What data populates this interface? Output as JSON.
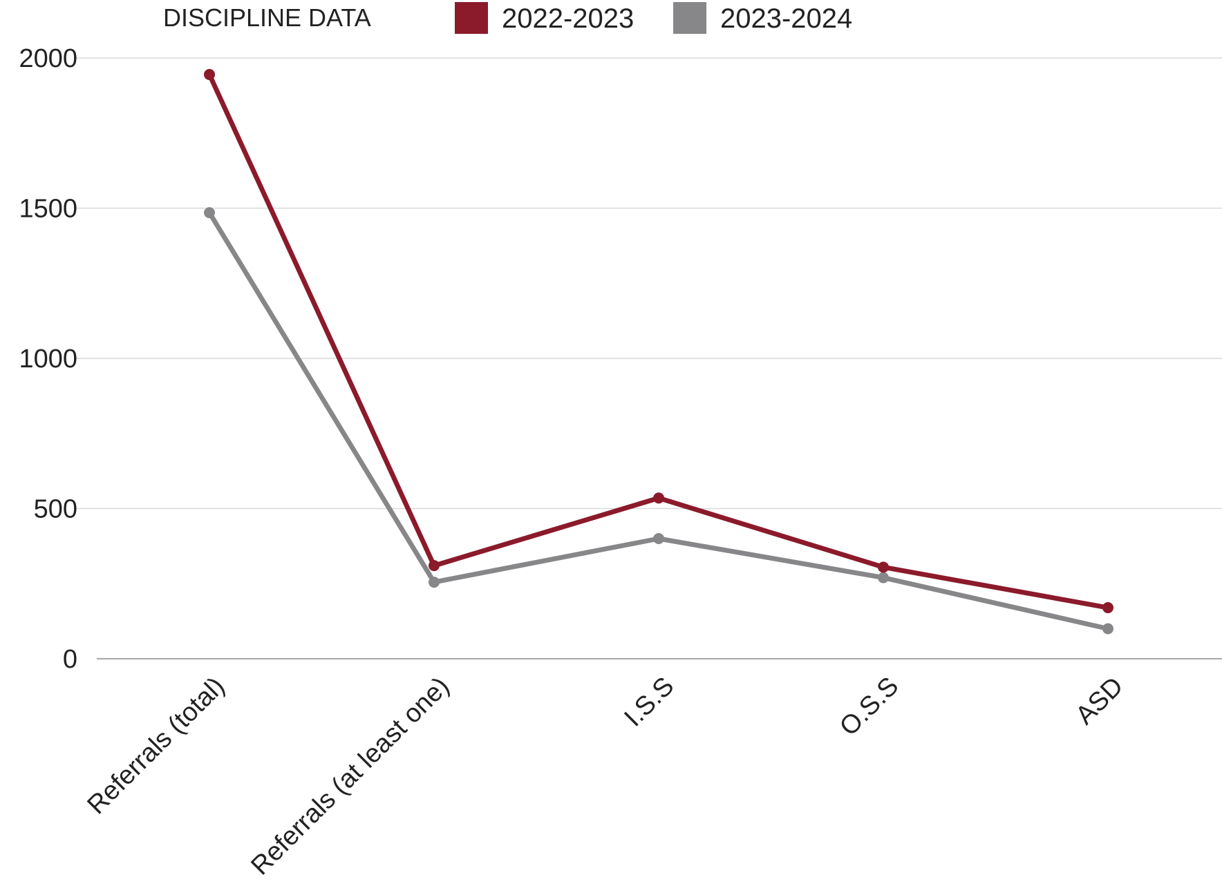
{
  "chart_data": {
    "type": "line",
    "legend_title": "DISCIPLINE DATA",
    "legend_position": "top",
    "categories": [
      "Referrals (total)",
      "Referrals (at least one)",
      "I.S.S",
      "O.S.S",
      "ASD"
    ],
    "series": [
      {
        "name": "2022-2023",
        "color": "#8b1a2b",
        "values": [
          1945,
          310,
          535,
          305,
          170
        ]
      },
      {
        "name": "2023-2024",
        "color": "#87878a",
        "values": [
          1485,
          255,
          400,
          270,
          100
        ]
      }
    ],
    "y_ticks": [
      "0",
      "500",
      "1000",
      "1500",
      "2000"
    ],
    "ylim": [
      0,
      2000
    ],
    "grid": true,
    "gridline_color": "#d9d9d9",
    "baseline_color": "#a6a6a6"
  }
}
